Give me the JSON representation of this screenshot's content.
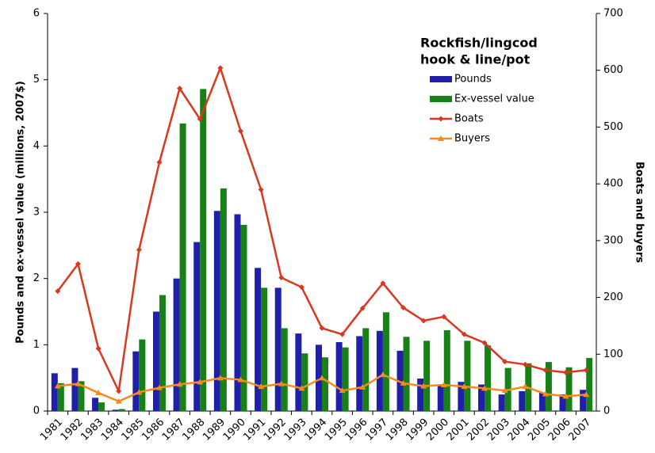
{
  "chart_data": {
    "type": "bar-line",
    "title": [
      "Rockfish/lingcod",
      "hook & line/pot"
    ],
    "y_label": "Pounds and ex-vessel value (millions, 2007$)",
    "y2_label": "Boats and buyers",
    "categories": [
      "1981",
      "1982",
      "1983",
      "1984",
      "1985",
      "1986",
      "1987",
      "1988",
      "1989",
      "1990",
      "1991",
      "1992",
      "1993",
      "1994",
      "1995",
      "1996",
      "1997",
      "1998",
      "1999",
      "2000",
      "2001",
      "2002",
      "2003",
      "2004",
      "2005",
      "2006",
      "2007"
    ],
    "ylim": [
      0,
      6
    ],
    "yticks": [
      0,
      1,
      2,
      3,
      4,
      5,
      6
    ],
    "y2lim": [
      0,
      700
    ],
    "y2ticks": [
      0,
      100,
      200,
      300,
      400,
      500,
      600,
      700
    ],
    "series": [
      {
        "name": "Pounds",
        "type": "bar",
        "color": "#1f1fa8",
        "values": [
          0.57,
          0.65,
          0.2,
          0.02,
          0.9,
          1.5,
          2.0,
          2.55,
          3.02,
          2.97,
          2.16,
          1.86,
          1.17,
          1.0,
          1.04,
          1.13,
          1.21,
          0.91,
          0.49,
          0.4,
          0.44,
          0.4,
          0.25,
          0.3,
          0.28,
          0.25,
          0.32
        ]
      },
      {
        "name": "Ex-vessel value",
        "type": "bar",
        "color": "#178017",
        "values": [
          0.42,
          0.45,
          0.13,
          0.03,
          1.08,
          1.75,
          4.34,
          4.86,
          3.36,
          2.81,
          1.86,
          1.25,
          0.87,
          0.81,
          0.96,
          1.25,
          1.49,
          1.12,
          1.06,
          1.22,
          1.06,
          0.99,
          0.65,
          0.72,
          0.74,
          0.66,
          0.8
        ]
      },
      {
        "name": "Boats",
        "type": "line",
        "marker": "diamond",
        "axis": "y2",
        "color": "#d9381e",
        "values": [
          211,
          259,
          110,
          35,
          284,
          438,
          568,
          514,
          604,
          493,
          390,
          235,
          218,
          146,
          135,
          181,
          225,
          182,
          159,
          166,
          135,
          120,
          87,
          82,
          72,
          68,
          72
        ]
      },
      {
        "name": "Buyers",
        "type": "line",
        "marker": "triangle",
        "axis": "y2",
        "color": "#f58a1f",
        "values": [
          44,
          48,
          32,
          17,
          33,
          41,
          47,
          51,
          58,
          55,
          43,
          48,
          40,
          58,
          36,
          42,
          64,
          49,
          44,
          46,
          43,
          40,
          36,
          43,
          30,
          26,
          29
        ]
      }
    ]
  }
}
